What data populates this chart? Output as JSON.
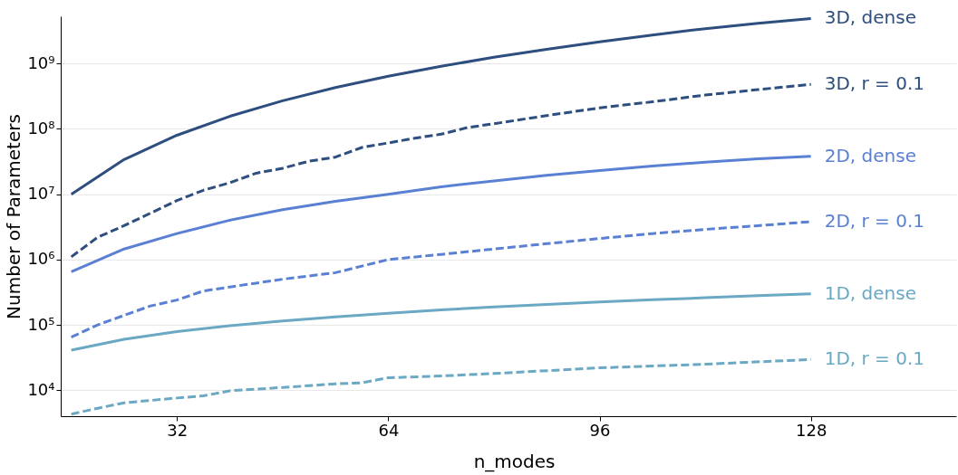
{
  "chart_data": {
    "type": "line",
    "xlabel": "n_modes",
    "ylabel": "Number of Parameters",
    "log": "y",
    "grid": "y",
    "legend": false,
    "xlim": [
      14.4,
      150
    ],
    "xticks": [
      32,
      64,
      96,
      128
    ],
    "ylim": [
      4000,
      5300000000
    ],
    "yticks": [
      {
        "value": 10000,
        "label": "10⁴"
      },
      {
        "value": 100000,
        "label": "10⁵"
      },
      {
        "value": 1000000,
        "label": "10⁶"
      },
      {
        "value": 10000000,
        "label": "10⁷"
      },
      {
        "value": 100000000,
        "label": "10⁸"
      },
      {
        "value": 1000000000,
        "label": "10⁹"
      }
    ],
    "series": [
      {
        "name": "3D, dense",
        "color": "#2d4e7e",
        "line_style": "solid",
        "x": [
          16,
          24,
          32,
          40,
          48,
          56,
          64,
          72,
          80,
          88,
          96,
          104,
          112,
          120,
          128
        ],
        "values": [
          10000000,
          34000000,
          80000000,
          156000000,
          270000000,
          430000000,
          640000000,
          910000000,
          1250000000,
          1660000000,
          2160000000,
          2740000000,
          3430000000,
          4150000000,
          4900000000
        ]
      },
      {
        "name": "3D, r = 0.1",
        "color": "#2d4e7e",
        "line_style": "dashed",
        "x": [
          16,
          20,
          24,
          32,
          36,
          40,
          44,
          48,
          52,
          56,
          60,
          64,
          68,
          72,
          76,
          80,
          88,
          96,
          104,
          112,
          120,
          128
        ],
        "values": [
          1100000,
          2200000,
          3300000,
          8000000,
          11500000,
          15000000,
          21000000,
          25000000,
          32000000,
          37000000,
          52000000,
          61000000,
          72000000,
          83000000,
          105000000,
          120000000,
          160000000,
          210000000,
          260000000,
          330000000,
          400000000,
          480000000
        ]
      },
      {
        "name": "2D, dense",
        "color": "#5a80d4",
        "line_style": "solid",
        "x": [
          16,
          24,
          32,
          40,
          48,
          56,
          64,
          72,
          80,
          88,
          96,
          104,
          112,
          120,
          128
        ],
        "values": [
          650000,
          1450000,
          2500000,
          4000000,
          5800000,
          7800000,
          10000000,
          13000000,
          16000000,
          19500000,
          23000000,
          27000000,
          31000000,
          35000000,
          38000000
        ]
      },
      {
        "name": "2D, r = 0.1",
        "color": "#5a80d4",
        "line_style": "dashed",
        "x": [
          16,
          20,
          24,
          28,
          32,
          36,
          40,
          48,
          56,
          64,
          72,
          80,
          88,
          96,
          104,
          112,
          120,
          128
        ],
        "values": [
          65000,
          100000,
          140000,
          195000,
          240000,
          330000,
          380000,
          500000,
          630000,
          1000000,
          1200000,
          1450000,
          1750000,
          2100000,
          2500000,
          2900000,
          3300000,
          3800000
        ]
      },
      {
        "name": "1D, dense",
        "color": "#6aa8c4",
        "line_style": "solid",
        "x": [
          16,
          24,
          32,
          40,
          48,
          56,
          64,
          72,
          80,
          88,
          96,
          104,
          112,
          120,
          128
        ],
        "values": [
          41000,
          60000,
          79000,
          97000,
          115000,
          133000,
          150000,
          170000,
          188000,
          206000,
          224000,
          242000,
          260000,
          280000,
          300000
        ]
      },
      {
        "name": "1D, r = 0.1",
        "color": "#6aa8c4",
        "line_style": "dashed",
        "x": [
          16,
          20,
          24,
          32,
          36,
          40,
          48,
          56,
          60,
          64,
          72,
          80,
          96,
          112,
          128
        ],
        "values": [
          4300,
          5300,
          6400,
          7600,
          8200,
          9800,
          11000,
          12500,
          13000,
          15500,
          16500,
          18000,
          22000,
          25000,
          29500
        ]
      }
    ]
  }
}
